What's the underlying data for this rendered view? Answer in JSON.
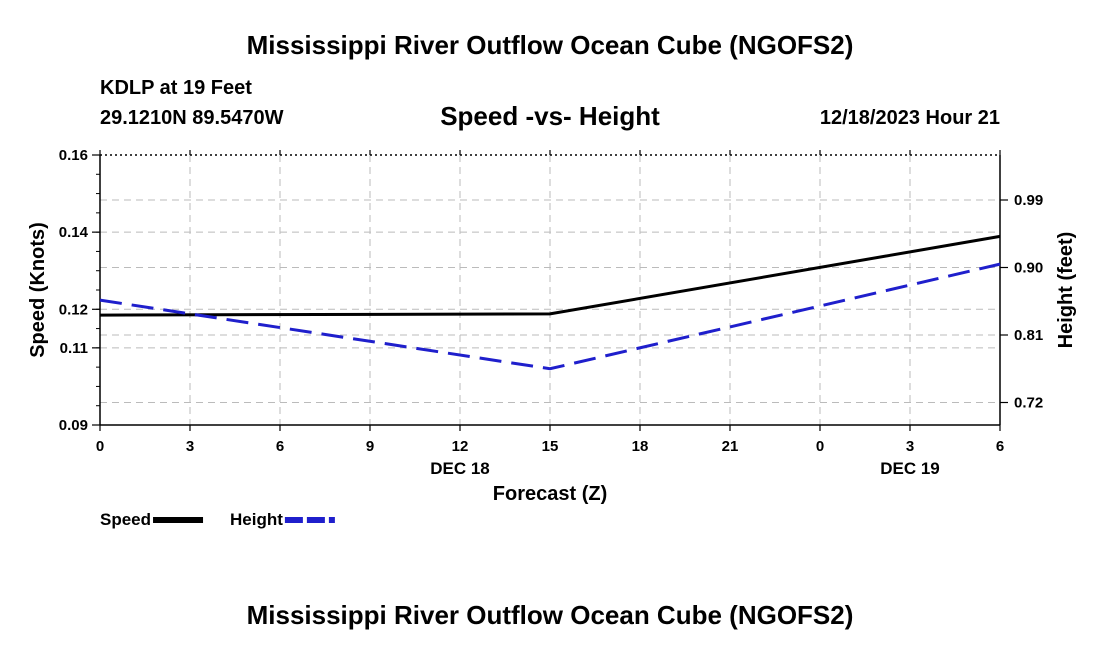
{
  "page": {
    "title": "Mississippi River Outflow Ocean Cube (NGOFS2)",
    "station": "KDLP at 19 Feet",
    "coordinates": "29.1210N  89.5470W",
    "datetime": "12/18/2023 Hour 21",
    "bottom_title": "Mississippi River Outflow Ocean Cube (NGOFS2)"
  },
  "chart_data": {
    "type": "line",
    "title": "Speed -vs- Height",
    "xlabel": "Forecast (Z)",
    "ylabel": "Speed (Knots)",
    "y2label": "Height (feet)",
    "x_tick_labels": [
      "0",
      "3",
      "6",
      "9",
      "12",
      "15",
      "18",
      "21",
      "0",
      "3",
      "6"
    ],
    "x_hours": [
      0,
      3,
      6,
      9,
      12,
      15,
      18,
      21,
      24,
      27,
      30
    ],
    "date_labels": [
      {
        "label": "DEC 18",
        "hour": 12
      },
      {
        "label": "DEC 19",
        "hour": 27
      }
    ],
    "yticks": [
      {
        "label": "0.09",
        "value": 0.09
      },
      {
        "label": "0.11",
        "value": 0.11
      },
      {
        "label": "0.12",
        "value": 0.12
      },
      {
        "label": "0.14",
        "value": 0.14
      },
      {
        "label": "0.16",
        "value": 0.16
      }
    ],
    "ylim": [
      0.09,
      0.16
    ],
    "y2ticks": [
      {
        "label": "0.72",
        "value": 0.72
      },
      {
        "label": "0.81",
        "value": 0.81
      },
      {
        "label": "0.90",
        "value": 0.9
      },
      {
        "label": "0.99",
        "value": 0.99
      }
    ],
    "y2lim": [
      0.69,
      1.05
    ],
    "xlim": [
      0,
      30
    ],
    "grid": true,
    "series": [
      {
        "name": "Speed",
        "axis": "left",
        "color": "#000000",
        "dash": "solid",
        "x": [
          0,
          15,
          30
        ],
        "values": [
          0.1185,
          0.1188,
          0.1389
        ]
      },
      {
        "name": "Height",
        "axis": "right",
        "color": "#1f1fcc",
        "dash": "dashed",
        "x": [
          0,
          15,
          30
        ],
        "values": [
          0.8565,
          0.765,
          0.9045
        ]
      }
    ],
    "legend": [
      {
        "label": "Speed",
        "color": "#000000",
        "dash": "solid"
      },
      {
        "label": "Height",
        "color": "#1f1fcc",
        "dash": "dashed"
      }
    ]
  }
}
